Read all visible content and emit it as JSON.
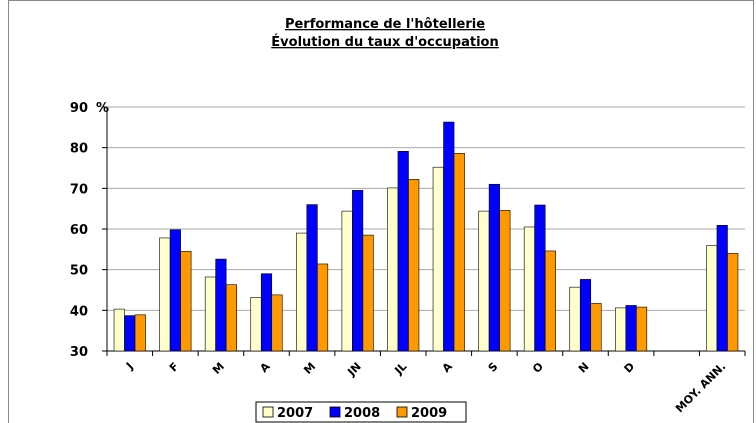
{
  "chart_data": {
    "type": "bar",
    "title": "Performance de l'hôtellerie",
    "subtitle": "Évolution du taux d'occupation",
    "y_unit": "%",
    "categories": [
      "J",
      "F",
      "M",
      "A",
      "M",
      "JN",
      "JL",
      "A",
      "S",
      "O",
      "N",
      "D",
      null,
      "MOY. ANN."
    ],
    "series": [
      {
        "name": "2007",
        "color": "#ffffcc",
        "values": [
          40.3,
          57.8,
          48.2,
          43.2,
          59.0,
          64.4,
          70.1,
          75.2,
          64.4,
          60.5,
          45.7,
          40.6,
          null,
          55.9
        ]
      },
      {
        "name": "2008",
        "color": "#0000ff",
        "values": [
          38.7,
          59.8,
          52.6,
          49.0,
          66.0,
          69.5,
          79.1,
          86.3,
          71.0,
          65.9,
          47.6,
          41.2,
          null,
          60.9
        ]
      },
      {
        "name": "2009",
        "color": "#ff9900",
        "values": [
          38.9,
          54.5,
          46.3,
          43.8,
          51.4,
          58.5,
          72.2,
          78.6,
          64.6,
          54.6,
          41.7,
          40.8,
          null,
          54.0
        ]
      }
    ],
    "ylim": [
      30,
      90
    ],
    "yticks": [
      30,
      40,
      50,
      60,
      70,
      80,
      90
    ],
    "grid": true,
    "legend": "bottom"
  }
}
